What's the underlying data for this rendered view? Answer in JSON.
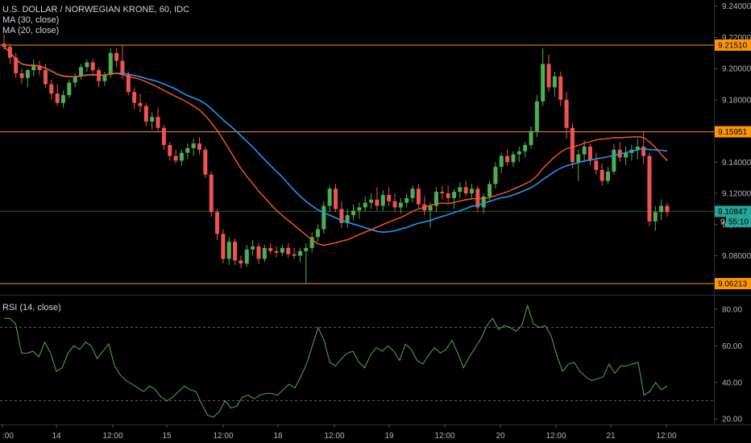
{
  "chart_data": [
    {
      "type": "candlestick",
      "title": "U.S. DOLLAR / NORWEGIAN KRONE, 60, IDC",
      "indicators": [
        "MA (30, close)",
        "MA (20, close)"
      ],
      "ylim": [
        9.056,
        9.244
      ],
      "y_ticks": [
        "9.24000",
        "9.22000",
        "9.20000",
        "9.18000",
        "9.16000",
        "9.14000",
        "9.12000",
        "9.10000",
        "9.08000"
      ],
      "x_ticks": [
        ":00",
        "14",
        "12:00",
        "15",
        "12:00",
        "18",
        "12:00",
        "19",
        "12:00",
        "20",
        "12:00",
        "21",
        "12:00"
      ],
      "horizontal_levels": [
        {
          "value": 9.2151,
          "label": "9.21510"
        },
        {
          "value": 9.15951,
          "label": "9.15951"
        },
        {
          "value": 9.06213,
          "label": "9.06213"
        }
      ],
      "last_price": {
        "value": 9.10847,
        "label": "9.10847"
      },
      "countdown": {
        "value": 9.102,
        "label": "55:10",
        "prefix": "9"
      },
      "candles": [
        [
          9.216,
          9.222,
          9.212,
          9.214
        ],
        [
          9.214,
          9.216,
          9.203,
          9.207
        ],
        [
          9.207,
          9.21,
          9.194,
          9.197
        ],
        [
          9.197,
          9.2,
          9.19,
          9.194
        ],
        [
          9.194,
          9.2,
          9.188,
          9.199
        ],
        [
          9.199,
          9.206,
          9.195,
          9.202
        ],
        [
          9.202,
          9.205,
          9.196,
          9.199
        ],
        [
          9.199,
          9.203,
          9.188,
          9.19
        ],
        [
          9.19,
          9.193,
          9.18,
          9.184
        ],
        [
          9.184,
          9.19,
          9.176,
          9.178
        ],
        [
          9.178,
          9.186,
          9.175,
          9.183
        ],
        [
          9.183,
          9.193,
          9.181,
          9.191
        ],
        [
          9.191,
          9.197,
          9.188,
          9.195
        ],
        [
          9.195,
          9.203,
          9.193,
          9.201
        ],
        [
          9.201,
          9.206,
          9.198,
          9.204
        ],
        [
          9.204,
          9.206,
          9.196,
          9.199
        ],
        [
          9.199,
          9.201,
          9.188,
          9.192
        ],
        [
          9.192,
          9.198,
          9.189,
          9.196
        ],
        [
          9.196,
          9.213,
          9.194,
          9.21
        ],
        [
          9.21,
          9.213,
          9.201,
          9.205
        ],
        [
          9.205,
          9.215,
          9.193,
          9.196
        ],
        [
          9.196,
          9.198,
          9.183,
          9.185
        ],
        [
          9.185,
          9.188,
          9.174,
          9.178
        ],
        [
          9.178,
          9.184,
          9.172,
          9.176
        ],
        [
          9.176,
          9.178,
          9.163,
          9.166
        ],
        [
          9.166,
          9.172,
          9.161,
          9.169
        ],
        [
          9.169,
          9.175,
          9.16,
          9.162
        ],
        [
          9.162,
          9.164,
          9.148,
          9.151
        ],
        [
          9.151,
          9.153,
          9.141,
          9.144
        ],
        [
          9.144,
          9.148,
          9.139,
          9.141
        ],
        [
          9.141,
          9.148,
          9.138,
          9.146
        ],
        [
          9.146,
          9.152,
          9.142,
          9.149
        ],
        [
          9.149,
          9.155,
          9.144,
          9.152
        ],
        [
          9.152,
          9.156,
          9.145,
          9.148
        ],
        [
          9.148,
          9.15,
          9.13,
          9.132
        ],
        [
          9.132,
          9.134,
          9.105,
          9.108
        ],
        [
          9.108,
          9.11,
          9.09,
          9.094
        ],
        [
          9.094,
          9.097,
          9.075,
          9.078
        ],
        [
          9.078,
          9.092,
          9.074,
          9.089
        ],
        [
          9.089,
          9.091,
          9.074,
          9.077
        ],
        [
          9.077,
          9.08,
          9.072,
          9.075
        ],
        [
          9.075,
          9.087,
          9.073,
          9.084
        ],
        [
          9.084,
          9.09,
          9.08,
          9.086
        ],
        [
          9.086,
          9.088,
          9.075,
          9.078
        ],
        [
          9.078,
          9.087,
          9.076,
          9.085
        ],
        [
          9.085,
          9.088,
          9.081,
          9.083
        ],
        [
          9.083,
          9.086,
          9.079,
          9.082
        ],
        [
          9.082,
          9.087,
          9.08,
          9.085
        ],
        [
          9.085,
          9.088,
          9.079,
          9.081
        ],
        [
          9.081,
          9.085,
          9.078,
          9.08
        ],
        [
          9.08,
          9.085,
          9.076,
          9.083
        ],
        [
          9.083,
          9.088,
          9.062,
          9.085
        ],
        [
          9.085,
          9.095,
          9.082,
          9.092
        ],
        [
          9.092,
          9.1,
          9.089,
          9.097
        ],
        [
          9.097,
          9.115,
          9.094,
          9.112
        ],
        [
          9.112,
          9.125,
          9.108,
          9.123
        ],
        [
          9.123,
          9.126,
          9.108,
          9.11
        ],
        [
          9.11,
          9.115,
          9.098,
          9.101
        ],
        [
          9.101,
          9.11,
          9.098,
          9.106
        ],
        [
          9.106,
          9.113,
          9.103,
          9.109
        ],
        [
          9.109,
          9.114,
          9.104,
          9.111
        ],
        [
          9.111,
          9.118,
          9.108,
          9.114
        ],
        [
          9.114,
          9.12,
          9.11,
          9.116
        ],
        [
          9.116,
          9.124,
          9.109,
          9.112
        ],
        [
          9.112,
          9.122,
          9.109,
          9.119
        ],
        [
          9.119,
          9.124,
          9.112,
          9.115
        ],
        [
          9.115,
          9.12,
          9.108,
          9.111
        ],
        [
          9.111,
          9.117,
          9.107,
          9.114
        ],
        [
          9.114,
          9.12,
          9.111,
          9.117
        ],
        [
          9.117,
          9.125,
          9.114,
          9.123
        ],
        [
          9.123,
          9.126,
          9.111,
          9.113
        ],
        [
          9.113,
          9.118,
          9.106,
          9.109
        ],
        [
          9.109,
          9.114,
          9.098,
          9.112
        ],
        [
          9.112,
          9.124,
          9.108,
          9.121
        ],
        [
          9.121,
          9.125,
          9.116,
          9.12
        ],
        [
          9.12,
          9.125,
          9.114,
          9.117
        ],
        [
          9.117,
          9.123,
          9.11,
          9.121
        ],
        [
          9.121,
          9.127,
          9.117,
          9.124
        ],
        [
          9.124,
          9.128,
          9.118,
          9.12
        ],
        [
          9.12,
          9.126,
          9.116,
          9.123
        ],
        [
          9.123,
          9.125,
          9.108,
          9.111
        ],
        [
          9.111,
          9.12,
          9.107,
          9.118
        ],
        [
          9.118,
          9.128,
          9.115,
          9.126
        ],
        [
          9.126,
          9.14,
          9.123,
          9.137
        ],
        [
          9.137,
          9.146,
          9.133,
          9.144
        ],
        [
          9.144,
          9.148,
          9.138,
          9.14
        ],
        [
          9.14,
          9.147,
          9.137,
          9.145
        ],
        [
          9.145,
          9.15,
          9.14,
          9.147
        ],
        [
          9.147,
          9.153,
          9.143,
          9.151
        ],
        [
          9.151,
          9.163,
          9.149,
          9.16
        ],
        [
          9.16,
          9.183,
          9.156,
          9.179
        ],
        [
          9.179,
          9.213,
          9.176,
          9.203
        ],
        [
          9.203,
          9.209,
          9.185,
          9.188
        ],
        [
          9.188,
          9.198,
          9.182,
          9.195
        ],
        [
          9.195,
          9.198,
          9.176,
          9.18
        ],
        [
          9.18,
          9.185,
          9.155,
          9.162
        ],
        [
          9.162,
          9.165,
          9.136,
          9.14
        ],
        [
          9.14,
          9.148,
          9.128,
          9.145
        ],
        [
          9.145,
          9.154,
          9.14,
          9.15
        ],
        [
          9.15,
          9.152,
          9.138,
          9.141
        ],
        [
          9.141,
          9.146,
          9.132,
          9.135
        ],
        [
          9.135,
          9.139,
          9.125,
          9.128
        ],
        [
          9.128,
          9.137,
          9.126,
          9.134
        ],
        [
          9.134,
          9.152,
          9.132,
          9.148
        ],
        [
          9.148,
          9.153,
          9.14,
          9.143
        ],
        [
          9.143,
          9.15,
          9.138,
          9.146
        ],
        [
          9.146,
          9.151,
          9.141,
          9.148
        ],
        [
          9.148,
          9.155,
          9.142,
          9.15
        ],
        [
          9.15,
          9.16,
          9.139,
          9.144
        ],
        [
          9.144,
          9.146,
          9.099,
          9.102
        ],
        [
          9.102,
          9.112,
          9.096,
          9.108
        ],
        [
          9.108,
          9.116,
          9.103,
          9.112
        ],
        [
          9.112,
          9.114,
          9.105,
          9.108
        ]
      ]
    },
    {
      "type": "line",
      "title": "RSI (14, close)",
      "ylim": [
        17,
        87
      ],
      "y_ticks": [
        "80.00",
        "60.00",
        "40.00",
        "20.00"
      ],
      "levels": [
        70,
        30
      ],
      "series": [
        {
          "values": [
            75,
            75,
            72,
            56,
            56,
            57,
            54,
            62,
            56,
            46,
            48,
            56,
            60,
            58,
            62,
            60,
            53,
            57,
            61,
            49,
            44,
            41,
            39,
            37,
            35,
            38,
            36,
            32,
            30,
            32,
            35,
            38,
            36,
            35,
            28,
            22,
            21,
            24,
            30,
            26,
            27,
            32,
            33,
            31,
            33,
            34,
            34,
            33,
            36,
            39,
            37,
            43,
            50,
            60,
            70,
            63,
            51,
            49,
            53,
            56,
            57,
            51,
            48,
            55,
            59,
            57,
            60,
            57,
            52,
            61,
            58,
            52,
            50,
            55,
            59,
            56,
            58,
            63,
            56,
            48,
            54,
            59,
            64,
            71,
            75,
            69,
            71,
            70,
            68,
            71,
            82,
            72,
            70,
            71,
            66,
            55,
            46,
            50,
            51,
            46,
            43,
            41,
            42,
            43,
            50,
            45,
            49,
            49,
            50,
            51,
            33,
            35,
            40,
            36,
            38
          ]
        }
      ]
    }
  ],
  "colors": {
    "up": "#4caf50",
    "down": "#ef5350",
    "ma30": "#2196f3",
    "ma20": "#ff5722",
    "level": "#ff9800",
    "rsi": "#4caf50",
    "last": "#26a69a"
  }
}
